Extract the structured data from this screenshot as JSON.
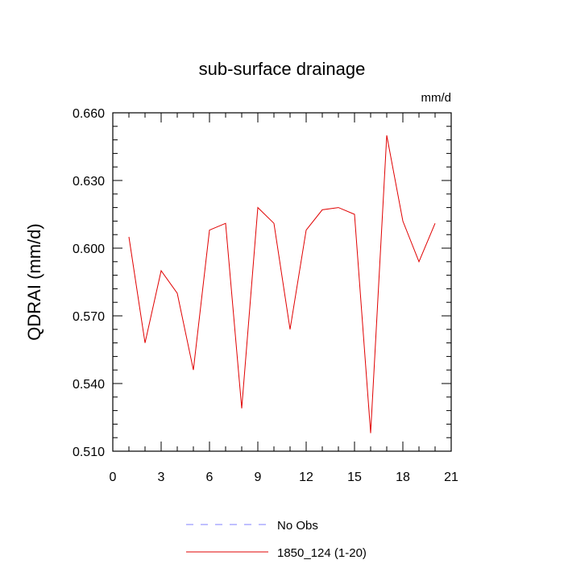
{
  "chart_data": {
    "type": "line",
    "title": "sub-surface drainage",
    "units_label": "mm/d",
    "ylabel": "QDRAI  (mm/d)",
    "xlabel": "",
    "xlim": [
      0,
      21
    ],
    "ylim": [
      0.51,
      0.66
    ],
    "x_ticks": [
      0,
      3,
      6,
      9,
      12,
      15,
      18,
      21
    ],
    "x_tick_labels": [
      "0",
      "3",
      "6",
      "9",
      "12",
      "15",
      "18",
      "21"
    ],
    "y_ticks": [
      0.51,
      0.54,
      0.57,
      0.6,
      0.63,
      0.66
    ],
    "y_tick_labels": [
      "0.510",
      "0.540",
      "0.570",
      "0.600",
      "0.630",
      "0.660"
    ],
    "grid": false,
    "legend_position": "bottom",
    "series": [
      {
        "name": "1850_124 (1-20)",
        "color": "#e00000",
        "style": "solid",
        "x": [
          1,
          2,
          3,
          4,
          5,
          6,
          7,
          8,
          9,
          10,
          11,
          12,
          13,
          14,
          15,
          16,
          17,
          18,
          19,
          20
        ],
        "y": [
          0.605,
          0.558,
          0.59,
          0.58,
          0.546,
          0.608,
          0.611,
          0.529,
          0.618,
          0.611,
          0.564,
          0.608,
          0.617,
          0.618,
          0.615,
          0.518,
          0.65,
          0.612,
          0.594,
          0.611
        ]
      }
    ],
    "legend": [
      {
        "label": "No Obs",
        "color": "#8080ff",
        "style": "dashed"
      },
      {
        "label": "1850_124 (1-20)",
        "color": "#e00000",
        "style": "solid"
      }
    ]
  }
}
